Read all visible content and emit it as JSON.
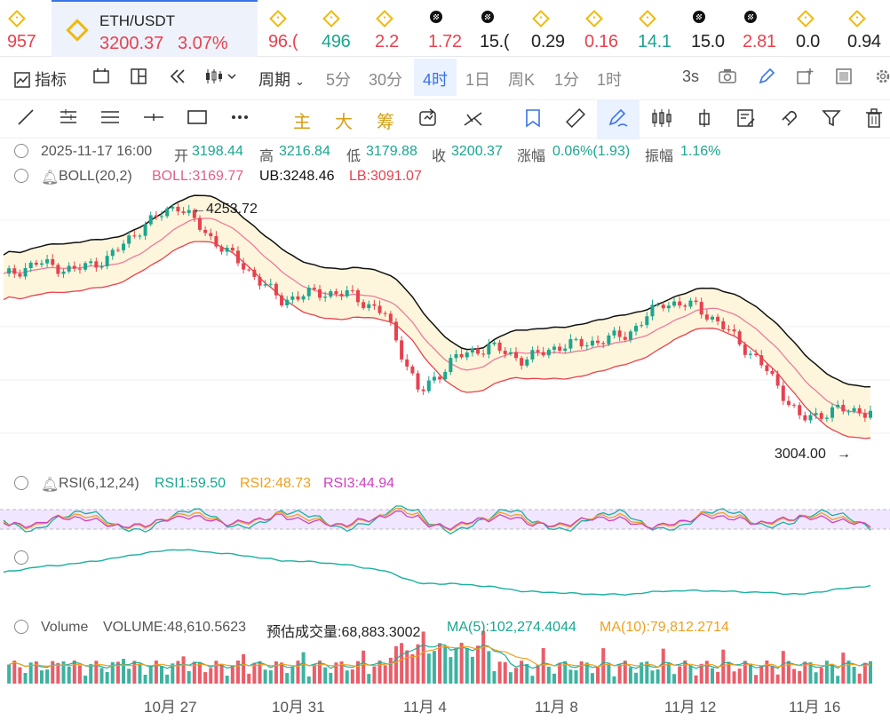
{
  "ticker": {
    "items": [
      {
        "value": "957",
        "dir": "up",
        "icon": "binance-icon"
      },
      {
        "value": "96.(",
        "dir": "up",
        "icon": "binance-icon"
      },
      {
        "value": "496",
        "dir": "dn",
        "icon": "binance-icon"
      },
      {
        "value": "2.2",
        "dir": "up",
        "icon": "binance-icon"
      },
      {
        "value": "1.72",
        "dir": "up",
        "icon": "okx-icon"
      },
      {
        "value": "15.(",
        "dir": "flat",
        "icon": "okx-icon"
      },
      {
        "value": "0.29",
        "dir": "flat",
        "icon": "binance-icon"
      },
      {
        "value": "0.16",
        "dir": "up",
        "icon": "binance-icon"
      },
      {
        "value": "14.1",
        "dir": "dn",
        "icon": "binance-icon"
      },
      {
        "value": "15.0",
        "dir": "flat",
        "icon": "okx-icon"
      },
      {
        "value": "2.81",
        "dir": "up",
        "icon": "okx-icon"
      },
      {
        "value": "0.0",
        "dir": "flat",
        "icon": "binance-icon"
      },
      {
        "value": "0.94",
        "dir": "flat",
        "icon": "binance-icon"
      }
    ],
    "active": {
      "pair": "ETH/USDT",
      "price": "3200.37",
      "change": "3.07%"
    }
  },
  "toolbar": {
    "indicators": "指标",
    "period": "周期",
    "timeframes": [
      "5分",
      "30分",
      "4时",
      "1日",
      "周K",
      "1分",
      "1时"
    ],
    "interval": "3s"
  },
  "drawing_tools": {
    "main": "主",
    "big": "大",
    "chip": "筹"
  },
  "info": {
    "datetime": "2025-11-17 16:00",
    "open_label": "开",
    "open": "3198.44",
    "high_label": "高",
    "high": "3216.84",
    "low_label": "低",
    "low": "3179.88",
    "close_label": "收",
    "close": "3200.37",
    "change_label": "涨幅",
    "change": "0.06%(1.93)",
    "amp_label": "振幅",
    "amp": "1.16%"
  },
  "boll": {
    "title": "BOLL(20,2)",
    "mid": "BOLL:3169.77",
    "ub": "UB:3248.46",
    "lb": "LB:3091.07"
  },
  "chart_labels": {
    "max": "4253.72",
    "min": "3004.00"
  },
  "rsi": {
    "title": "RSI(6,12,24)",
    "rsi1": "RSI1:59.50",
    "rsi2": "RSI2:48.73",
    "rsi3": "RSI3:44.94"
  },
  "volume": {
    "title": "Volume",
    "vol": "VOLUME:48,610.5623",
    "est": "预估成交量:68,883.3002",
    "ma5": "MA(5):102,274.4044",
    "ma10": "MA(10):79,812.2714"
  },
  "xaxis": [
    "10月 27",
    "10月 31",
    "11月 4",
    "11月 8",
    "11月 12",
    "11月 16"
  ],
  "colors": {
    "up": "#e8414e",
    "down": "#1aa68f",
    "accent": "#3a73e8",
    "boll_fill": "#fdf6dc"
  },
  "chart_data": {
    "type": "candlestick",
    "approx_close_path": [
      3890,
      3960,
      3920,
      3980,
      4140,
      4253.72,
      4080,
      3930,
      3770,
      3810,
      3800,
      3700,
      3300,
      3480,
      3540,
      3470,
      3540,
      3560,
      3600,
      3760,
      3740,
      3600,
      3420,
      3170,
      3220,
      3210
    ],
    "range": [
      3004.0,
      4253.72
    ]
  }
}
